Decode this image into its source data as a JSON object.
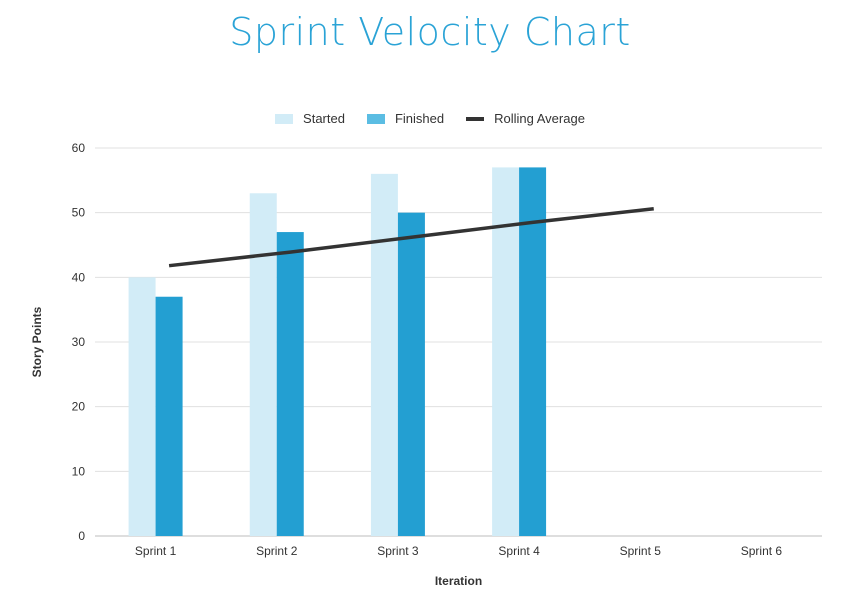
{
  "colors": {
    "title": "#2aa3d6",
    "started": "#d2ecf7",
    "finished": "#239fd2",
    "finished_legend": "#5bbde3",
    "rolling_average": "#333333",
    "grid": "#e0e0e0"
  },
  "chart_data": {
    "type": "bar",
    "title": "Sprint Velocity Chart",
    "xlabel": "Iteration",
    "ylabel": "Story Points",
    "categories": [
      "Sprint 1",
      "Sprint 2",
      "Sprint 3",
      "Sprint 4",
      "Sprint 5",
      "Sprint 6"
    ],
    "ylim": [
      0,
      60
    ],
    "yticks": [
      0,
      10,
      20,
      30,
      40,
      50,
      60
    ],
    "grid": true,
    "legend_position": "top",
    "series": [
      {
        "name": "Started",
        "type": "bar",
        "values": [
          40,
          53,
          56,
          57,
          null,
          null
        ]
      },
      {
        "name": "Finished",
        "type": "bar",
        "values": [
          37,
          47,
          50,
          57,
          null,
          null
        ]
      },
      {
        "name": "Rolling Average",
        "type": "line",
        "values": [
          41.8,
          43.9,
          46.2,
          48.5,
          50.6,
          null
        ]
      }
    ]
  }
}
